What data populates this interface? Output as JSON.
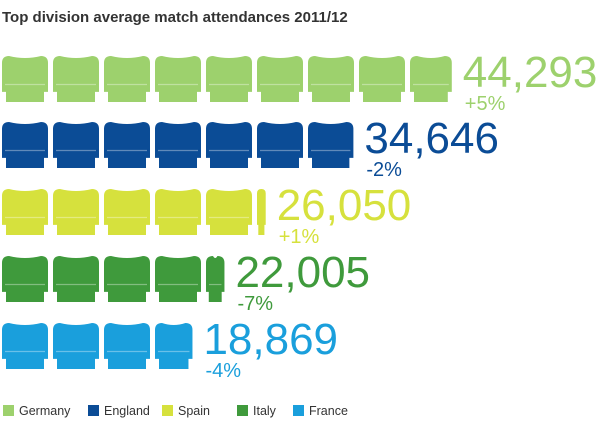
{
  "chart_data": {
    "type": "bar",
    "title": "Top division average match attendances 2011/12",
    "categories": [
      "Germany",
      "England",
      "Spain",
      "Italy",
      "France"
    ],
    "values": [
      44293,
      34646,
      26050,
      22005,
      18869
    ],
    "value_labels": [
      "44,293",
      "34,646",
      "26,050",
      "22,005",
      "18,869"
    ],
    "changes": [
      "+5%",
      "-2%",
      "+1%",
      "-7%",
      "-4%"
    ],
    "colors": [
      "#9dd16d",
      "#0b4c96",
      "#d6e13d",
      "#3f9a3c",
      "#1a9fdc"
    ],
    "unit_per_icon": 5000,
    "icon": "stadium-seat-icon",
    "legend": {
      "position": "bottom",
      "labels": [
        "Germany",
        "England",
        "Spain",
        "Italy",
        "France"
      ]
    }
  }
}
